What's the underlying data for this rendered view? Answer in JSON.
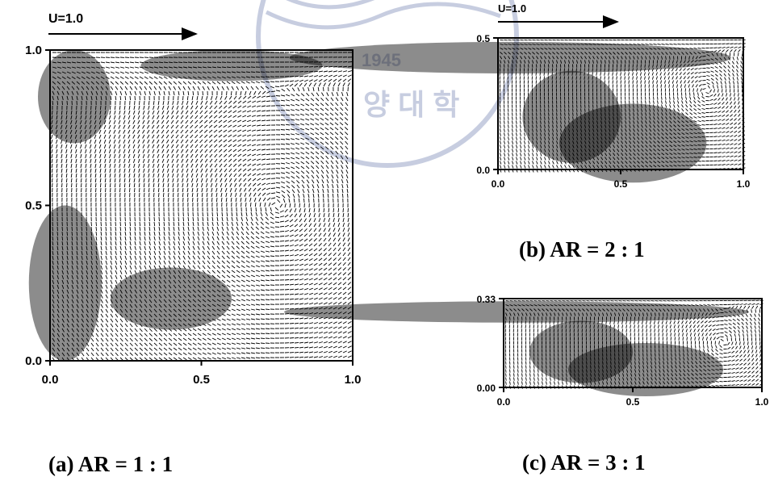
{
  "colors": {
    "ink": "#000000",
    "watermark": "#9aa6c8"
  },
  "watermark": {
    "year": "1945",
    "text": "양 대 학"
  },
  "chart_data": [
    {
      "type": "vector-field",
      "panel_label": "(a) AR = 1 : 1",
      "velocity_label": "U=1.0",
      "xlim": [
        0.0,
        1.0
      ],
      "ylim": [
        0.0,
        1.0
      ],
      "x_ticks": [
        "0.0",
        "0.5",
        "1.0"
      ],
      "y_ticks": [
        "0.0",
        "0.5",
        "1.0"
      ],
      "vortex_center": [
        0.75,
        0.5
      ]
    },
    {
      "type": "vector-field",
      "panel_label": "(b) AR = 2 : 1",
      "velocity_label": "U=1.0",
      "xlim": [
        0.0,
        1.0
      ],
      "ylim": [
        0.0,
        0.5
      ],
      "x_ticks": [
        "0.0",
        "0.5",
        "1.0"
      ],
      "y_ticks": [
        "0.0",
        "0.5"
      ],
      "vortex_center": [
        0.85,
        0.3
      ]
    },
    {
      "type": "vector-field",
      "panel_label": "(c) AR = 3 : 1",
      "velocity_label": "",
      "xlim": [
        0.0,
        1.0
      ],
      "ylim": [
        0.0,
        0.33
      ],
      "x_ticks": [
        "0.0",
        "0.5",
        "1.0"
      ],
      "y_ticks": [
        "0.00",
        "0.33"
      ],
      "vortex_center": [
        0.85,
        0.17
      ]
    }
  ]
}
